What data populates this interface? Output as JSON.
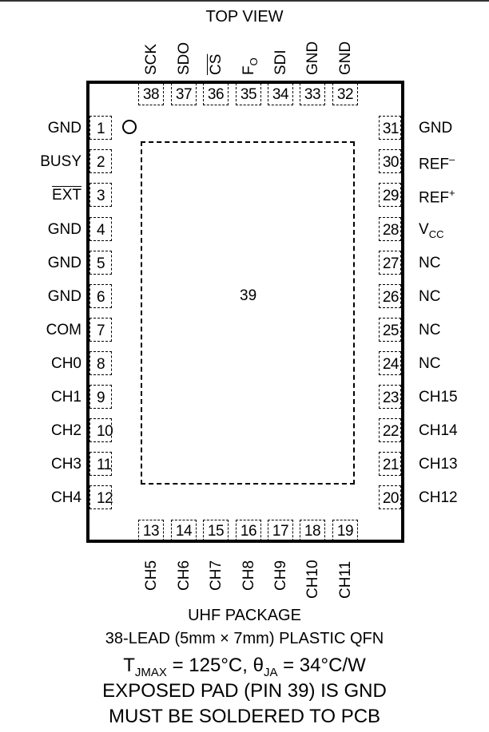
{
  "title": "TOP VIEW",
  "exposed_pad_number": "39",
  "left_pins": [
    {
      "num": "1",
      "name": "GND"
    },
    {
      "num": "2",
      "name": "BUSY"
    },
    {
      "num": "3",
      "name": "EXT"
    },
    {
      "num": "4",
      "name": "GND"
    },
    {
      "num": "5",
      "name": "GND"
    },
    {
      "num": "6",
      "name": "GND"
    },
    {
      "num": "7",
      "name": "COM"
    },
    {
      "num": "8",
      "name": "CH0"
    },
    {
      "num": "9",
      "name": "CH1"
    },
    {
      "num": "10",
      "name": "CH2"
    },
    {
      "num": "11",
      "name": "CH3"
    },
    {
      "num": "12",
      "name": "CH4"
    }
  ],
  "bottom_pins": [
    {
      "num": "13",
      "name": "CH5"
    },
    {
      "num": "14",
      "name": "CH6"
    },
    {
      "num": "15",
      "name": "CH7"
    },
    {
      "num": "16",
      "name": "CH8"
    },
    {
      "num": "17",
      "name": "CH9"
    },
    {
      "num": "18",
      "name": "CH10"
    },
    {
      "num": "19",
      "name": "CH11"
    }
  ],
  "right_pins": [
    {
      "num": "31",
      "name": "GND"
    },
    {
      "num": "30",
      "name": "REF",
      "sup": "–"
    },
    {
      "num": "29",
      "name": "REF",
      "sup": "+"
    },
    {
      "num": "28",
      "name": "V",
      "sub": "CC"
    },
    {
      "num": "27",
      "name": "NC"
    },
    {
      "num": "26",
      "name": "NC"
    },
    {
      "num": "25",
      "name": "NC"
    },
    {
      "num": "24",
      "name": "NC"
    },
    {
      "num": "23",
      "name": "CH15"
    },
    {
      "num": "22",
      "name": "CH14"
    },
    {
      "num": "21",
      "name": "CH13"
    },
    {
      "num": "20",
      "name": "CH12"
    }
  ],
  "top_pins": [
    {
      "num": "38",
      "name": "SCK"
    },
    {
      "num": "37",
      "name": "SDO"
    },
    {
      "num": "36",
      "name": "CS"
    },
    {
      "num": "35",
      "name": "F",
      "sub": "O"
    },
    {
      "num": "34",
      "name": "SDI"
    },
    {
      "num": "33",
      "name": "GND"
    },
    {
      "num": "32",
      "name": "GND"
    }
  ],
  "caption": {
    "package": "UHF PACKAGE",
    "lead": "38-LEAD (5mm × 7mm) PLASTIC QFN",
    "thermal_t": "T",
    "thermal_t_sub": "JMAX",
    "thermal_mid": " = 125°C, θ",
    "thermal_theta_sub": "JA",
    "thermal_end": " = 34°C/W",
    "pad_note": "EXPOSED PAD (PIN 39) IS GND",
    "solder_note": "MUST BE SOLDERED TO PCB"
  }
}
